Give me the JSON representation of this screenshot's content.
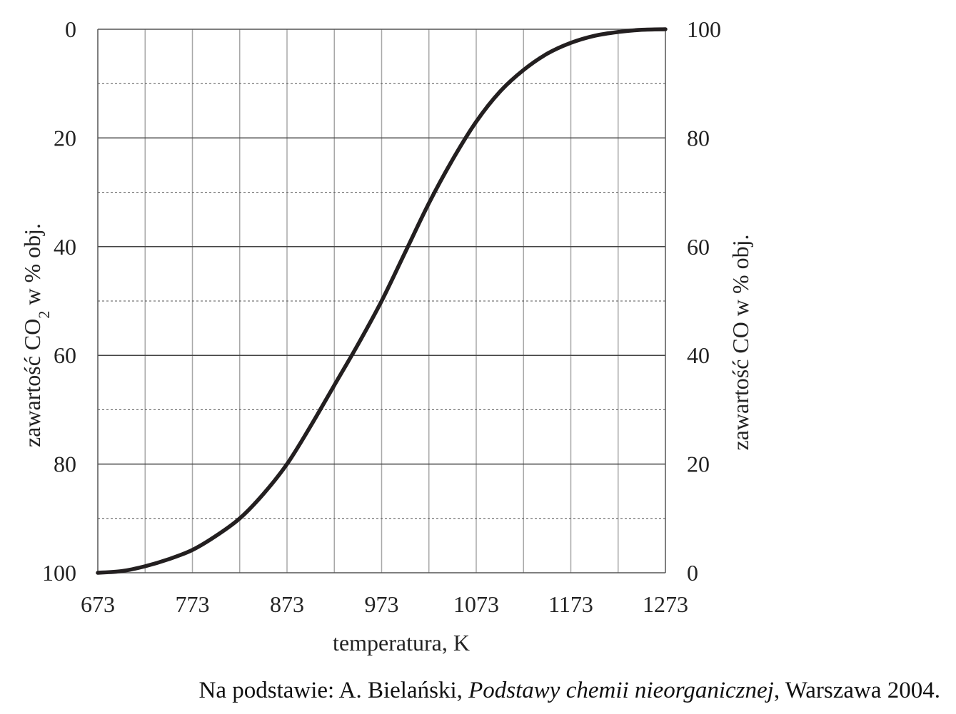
{
  "chart_data": {
    "type": "line",
    "x_label": "temperatura, K",
    "y_left_label_prefix": "zawartość CO",
    "y_left_label_subscript": "2",
    "y_left_label_suffix": " w % obj.",
    "y_right_label": "zawartość CO w % obj.",
    "x_ticks": [
      "673",
      "773",
      "873",
      "973",
      "1073",
      "1173",
      "1273"
    ],
    "y_left_ticks": [
      "0",
      "20",
      "40",
      "60",
      "80",
      "100"
    ],
    "y_right_ticks": [
      "100",
      "80",
      "60",
      "40",
      "20",
      "0"
    ],
    "xlim": [
      673,
      1273
    ],
    "y_left_lim": [
      0,
      100
    ],
    "y_left_inverted": true,
    "y_right_lim": [
      0,
      100
    ],
    "grid": true,
    "series": [
      {
        "quantity": "CO",
        "axis": "right",
        "color": "#231f20",
        "x": [
          673,
          698,
          723,
          748,
          773,
          798,
          823,
          848,
          873,
          898,
          923,
          948,
          973,
          998,
          1023,
          1048,
          1073,
          1098,
          1123,
          1148,
          1173,
          1198,
          1223,
          1248,
          1273
        ],
        "y": [
          0,
          0.3,
          1.2,
          2.5,
          4.2,
          6.8,
          10,
          14.5,
          20,
          27,
          34.5,
          42,
          50,
          59,
          68,
          76,
          83,
          88.5,
          92.5,
          95.5,
          97.5,
          98.8,
          99.5,
          99.9,
          100
        ]
      }
    ]
  },
  "source": {
    "prefix": "Na podstawie: A. Bielański, ",
    "title": "Podstawy chemii nieorganicznej",
    "suffix": ", Warszawa 2004."
  }
}
